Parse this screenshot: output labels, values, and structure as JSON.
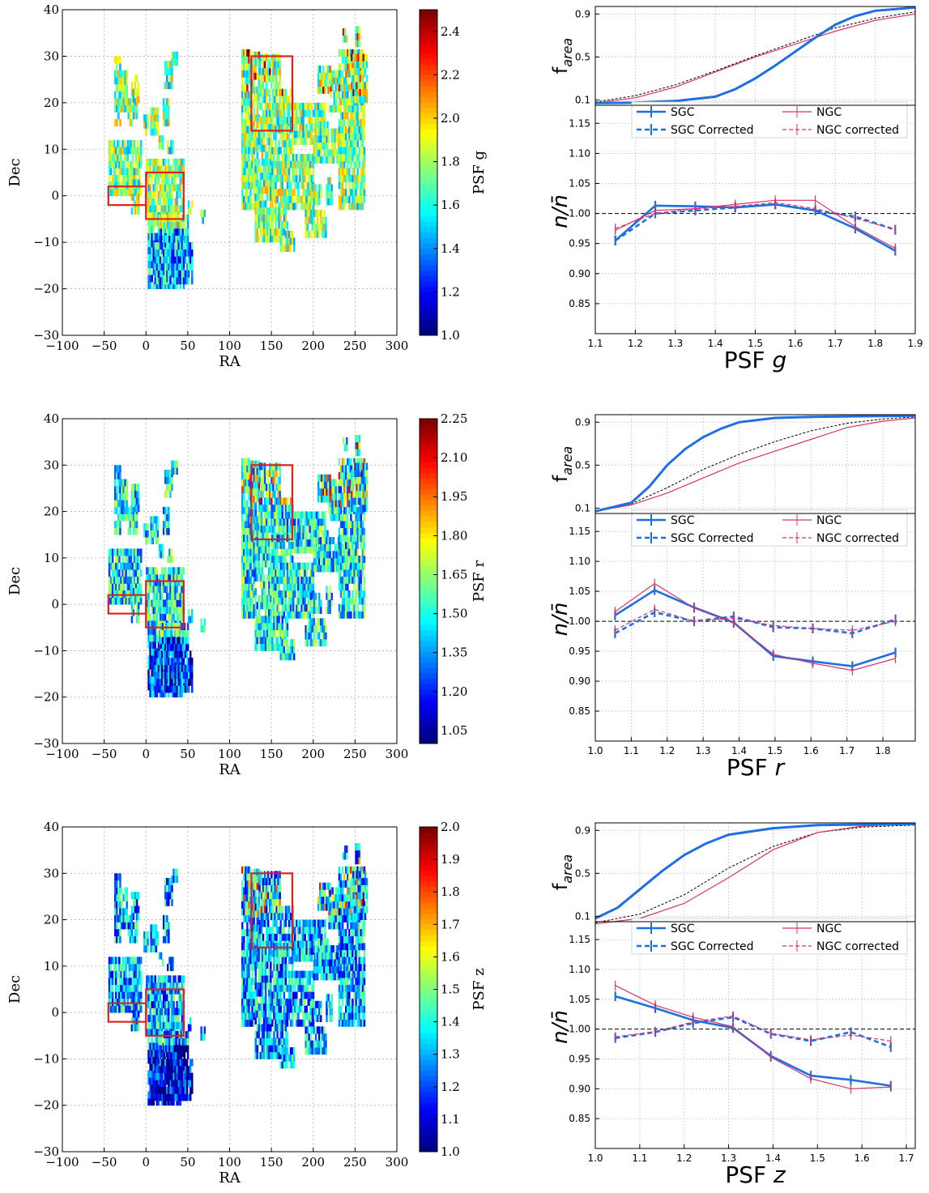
{
  "chart_data": [
    {
      "type": "heatmap",
      "xlabel": "RA",
      "ylabel": "Dec",
      "xticks": [
        "−100",
        "−50",
        "0",
        "50",
        "100",
        "150",
        "200",
        "250",
        "300"
      ],
      "yticks": [
        "−30",
        "−20",
        "−10",
        "0",
        "10",
        "20",
        "30",
        "40"
      ],
      "xlim": [
        -100,
        300
      ],
      "ylim": [
        -30,
        40
      ],
      "grid": true,
      "colorbar": {
        "label": "PSF g",
        "var": "g",
        "min": 1.0,
        "max": 2.5,
        "ticks": [
          "1.0",
          "1.2",
          "1.4",
          "1.6",
          "1.8",
          "2.0",
          "2.2",
          "2.4"
        ],
        "tick_values": [
          1.0,
          1.2,
          1.4,
          1.6,
          1.8,
          2.0,
          2.2,
          2.4
        ]
      },
      "colormap": "jet",
      "level": 0.5,
      "boxes": [
        {
          "ra": [
            -45,
            0
          ],
          "dec": [
            -2,
            2
          ]
        },
        {
          "ra": [
            0,
            45
          ],
          "dec": [
            -5,
            5
          ]
        },
        {
          "ra": [
            126,
            175
          ],
          "dec": [
            14,
            30
          ]
        }
      ]
    },
    {
      "type": "line",
      "xlabel": "PSF",
      "xlabel_var": "g",
      "top_ylabel": "f",
      "top_ylabel_sub": "area",
      "ylabel": "n/n̄",
      "xlim": [
        1.1,
        1.9
      ],
      "xticks": [
        "1.1",
        "1.2",
        "1.3",
        "1.4",
        "1.5",
        "1.6",
        "1.7",
        "1.8",
        "1.9"
      ],
      "top_yticks": [
        "0.1",
        "0.5",
        "0.9"
      ],
      "ylim": [
        0.8,
        1.18
      ],
      "yticks": [
        "0.85",
        "0.90",
        "0.95",
        "1.00",
        "1.05",
        "1.10",
        "1.15"
      ],
      "legend": [
        "SGC",
        "SGC Corrected",
        "NGC",
        "NGC corrected"
      ],
      "x": [
        1.15,
        1.25,
        1.35,
        1.45,
        1.55,
        1.65,
        1.75,
        1.85
      ],
      "series": [
        {
          "name": "SGC",
          "values": [
            0.955,
            1.013,
            1.012,
            1.01,
            1.015,
            1.005,
            0.975,
            0.938
          ]
        },
        {
          "name": "SGC Corrected",
          "values": [
            0.955,
            1.0,
            1.005,
            1.01,
            1.015,
            1.005,
            0.995,
            0.973
          ]
        },
        {
          "name": "NGC",
          "values": [
            0.972,
            1.005,
            1.008,
            1.015,
            1.022,
            1.022,
            0.978,
            0.942
          ]
        },
        {
          "name": "NGC corrected",
          "values": [
            0.975,
            1.0,
            1.008,
            1.012,
            1.018,
            1.008,
            0.992,
            0.973
          ]
        }
      ],
      "farea": {
        "sgc": [
          [
            1.1,
            0.07
          ],
          [
            1.2,
            0.075
          ],
          [
            1.3,
            0.09
          ],
          [
            1.4,
            0.13
          ],
          [
            1.45,
            0.2
          ],
          [
            1.5,
            0.3
          ],
          [
            1.55,
            0.42
          ],
          [
            1.6,
            0.55
          ],
          [
            1.65,
            0.68
          ],
          [
            1.7,
            0.8
          ],
          [
            1.75,
            0.88
          ],
          [
            1.8,
            0.93
          ],
          [
            1.9,
            0.96
          ]
        ],
        "ngc": [
          [
            1.1,
            0.07
          ],
          [
            1.2,
            0.12
          ],
          [
            1.3,
            0.22
          ],
          [
            1.4,
            0.36
          ],
          [
            1.5,
            0.5
          ],
          [
            1.6,
            0.62
          ],
          [
            1.7,
            0.74
          ],
          [
            1.8,
            0.84
          ],
          [
            1.9,
            0.9
          ]
        ],
        "ref": [
          [
            1.1,
            0.08
          ],
          [
            1.2,
            0.14
          ],
          [
            1.3,
            0.24
          ],
          [
            1.4,
            0.37
          ],
          [
            1.5,
            0.51
          ],
          [
            1.6,
            0.64
          ],
          [
            1.7,
            0.77
          ],
          [
            1.8,
            0.86
          ],
          [
            1.9,
            0.92
          ]
        ]
      }
    },
    {
      "type": "heatmap",
      "xlabel": "RA",
      "ylabel": "Dec",
      "xticks": [
        "−100",
        "−50",
        "0",
        "50",
        "100",
        "150",
        "200",
        "250",
        "300"
      ],
      "yticks": [
        "−30",
        "−20",
        "−10",
        "0",
        "10",
        "20",
        "30",
        "40"
      ],
      "xlim": [
        -100,
        300
      ],
      "ylim": [
        -30,
        40
      ],
      "grid": true,
      "colorbar": {
        "label": "PSF r",
        "var": "r",
        "min": 1.0,
        "max": 2.25,
        "ticks": [
          "1.05",
          "1.20",
          "1.35",
          "1.50",
          "1.65",
          "1.80",
          "1.95",
          "2.10",
          "2.25"
        ],
        "tick_values": [
          1.05,
          1.2,
          1.35,
          1.5,
          1.65,
          1.8,
          1.95,
          2.1,
          2.25
        ]
      },
      "colormap": "jet",
      "level": 0.38,
      "boxes": [
        {
          "ra": [
            -45,
            0
          ],
          "dec": [
            -2,
            2
          ]
        },
        {
          "ra": [
            0,
            45
          ],
          "dec": [
            -5,
            5
          ]
        },
        {
          "ra": [
            126,
            175
          ],
          "dec": [
            14,
            30
          ]
        }
      ]
    },
    {
      "type": "line",
      "xlabel": "PSF",
      "xlabel_var": "r",
      "top_ylabel": "f",
      "top_ylabel_sub": "area",
      "ylabel": "n/n̄",
      "xlim": [
        1.0,
        1.89
      ],
      "xticks": [
        "1.0",
        "1.1",
        "1.2",
        "1.3",
        "1.4",
        "1.5",
        "1.6",
        "1.7",
        "1.8"
      ],
      "top_yticks": [
        "0.1",
        "0.5",
        "0.9"
      ],
      "ylim": [
        0.8,
        1.18
      ],
      "yticks": [
        "0.85",
        "0.90",
        "0.95",
        "1.00",
        "1.05",
        "1.10",
        "1.15"
      ],
      "legend": [
        "SGC",
        "SGC Corrected",
        "NGC",
        "NGC corrected"
      ],
      "x": [
        1.055,
        1.165,
        1.275,
        1.385,
        1.495,
        1.605,
        1.715,
        1.835
      ],
      "series": [
        {
          "name": "SGC",
          "values": [
            1.01,
            1.052,
            1.023,
            0.998,
            0.942,
            0.933,
            0.925,
            0.948
          ]
        },
        {
          "name": "SGC Corrected",
          "values": [
            0.98,
            1.015,
            1.0,
            1.008,
            0.99,
            0.988,
            0.98,
            1.003
          ]
        },
        {
          "name": "NGC",
          "values": [
            1.016,
            1.063,
            1.022,
            0.997,
            0.945,
            0.93,
            0.918,
            0.938
          ]
        },
        {
          "name": "NGC corrected",
          "values": [
            0.985,
            1.02,
            1.0,
            1.005,
            0.993,
            0.988,
            0.985,
            1.0
          ]
        }
      ],
      "farea": {
        "sgc": [
          [
            1.0,
            0.07
          ],
          [
            1.1,
            0.15
          ],
          [
            1.15,
            0.3
          ],
          [
            1.2,
            0.5
          ],
          [
            1.25,
            0.65
          ],
          [
            1.3,
            0.76
          ],
          [
            1.35,
            0.84
          ],
          [
            1.4,
            0.9
          ],
          [
            1.5,
            0.94
          ],
          [
            1.6,
            0.95
          ],
          [
            1.89,
            0.96
          ]
        ],
        "ngc": [
          [
            1.0,
            0.07
          ],
          [
            1.1,
            0.13
          ],
          [
            1.2,
            0.24
          ],
          [
            1.3,
            0.38
          ],
          [
            1.4,
            0.52
          ],
          [
            1.5,
            0.63
          ],
          [
            1.6,
            0.74
          ],
          [
            1.7,
            0.85
          ],
          [
            1.8,
            0.91
          ],
          [
            1.89,
            0.94
          ]
        ],
        "ref": [
          [
            1.0,
            0.07
          ],
          [
            1.1,
            0.14
          ],
          [
            1.2,
            0.29
          ],
          [
            1.3,
            0.46
          ],
          [
            1.4,
            0.6
          ],
          [
            1.5,
            0.72
          ],
          [
            1.6,
            0.82
          ],
          [
            1.7,
            0.89
          ],
          [
            1.8,
            0.93
          ],
          [
            1.89,
            0.95
          ]
        ]
      }
    },
    {
      "type": "heatmap",
      "xlabel": "RA",
      "ylabel": "Dec",
      "xticks": [
        "−100",
        "−50",
        "0",
        "50",
        "100",
        "150",
        "200",
        "250",
        "300"
      ],
      "yticks": [
        "−30",
        "−20",
        "−10",
        "0",
        "10",
        "20",
        "30",
        "40"
      ],
      "xlim": [
        -100,
        300
      ],
      "ylim": [
        -30,
        40
      ],
      "grid": true,
      "colorbar": {
        "label": "PSF z",
        "var": "z",
        "min": 1.0,
        "max": 2.0,
        "ticks": [
          "1.0",
          "1.1",
          "1.2",
          "1.3",
          "1.4",
          "1.5",
          "1.6",
          "1.7",
          "1.8",
          "1.9",
          "2.0"
        ],
        "tick_values": [
          1.0,
          1.1,
          1.2,
          1.3,
          1.4,
          1.5,
          1.6,
          1.7,
          1.8,
          1.9,
          2.0
        ]
      },
      "colormap": "jet",
      "level": 0.3,
      "boxes": [
        {
          "ra": [
            -45,
            0
          ],
          "dec": [
            -2,
            2
          ]
        },
        {
          "ra": [
            0,
            45
          ],
          "dec": [
            -5,
            5
          ]
        },
        {
          "ra": [
            126,
            175
          ],
          "dec": [
            14,
            30
          ]
        }
      ]
    },
    {
      "type": "line",
      "xlabel": "PSF",
      "xlabel_var": "z",
      "top_ylabel": "f",
      "top_ylabel_sub": "area",
      "ylabel": "n/n̄",
      "xlim": [
        1.0,
        1.72
      ],
      "xticks": [
        "1.0",
        "1.1",
        "1.2",
        "1.3",
        "1.4",
        "1.5",
        "1.6",
        "1.7"
      ],
      "top_yticks": [
        "0.1",
        "0.5",
        "0.9"
      ],
      "ylim": [
        0.8,
        1.18
      ],
      "yticks": [
        "0.85",
        "0.90",
        "0.95",
        "1.00",
        "1.05",
        "1.10",
        "1.15"
      ],
      "legend": [
        "SGC",
        "SGC Corrected",
        "NGC",
        "NGC corrected"
      ],
      "x": [
        1.045,
        1.135,
        1.22,
        1.31,
        1.395,
        1.485,
        1.575,
        1.665
      ],
      "series": [
        {
          "name": "SGC",
          "values": [
            1.055,
            1.035,
            1.015,
            1.002,
            0.955,
            0.922,
            0.915,
            0.905
          ]
        },
        {
          "name": "SGC Corrected",
          "values": [
            0.985,
            0.995,
            1.01,
            1.02,
            0.992,
            0.98,
            0.995,
            0.97
          ]
        },
        {
          "name": "NGC",
          "values": [
            1.073,
            1.04,
            1.02,
            1.004,
            0.953,
            0.917,
            0.9,
            0.903
          ]
        },
        {
          "name": "NGC corrected",
          "values": [
            0.987,
            0.996,
            1.012,
            1.022,
            0.993,
            0.982,
            0.99,
            0.98
          ]
        }
      ],
      "farea": {
        "sgc": [
          [
            1.0,
            0.08
          ],
          [
            1.05,
            0.18
          ],
          [
            1.1,
            0.35
          ],
          [
            1.15,
            0.52
          ],
          [
            1.2,
            0.67
          ],
          [
            1.25,
            0.78
          ],
          [
            1.3,
            0.86
          ],
          [
            1.4,
            0.92
          ],
          [
            1.5,
            0.95
          ],
          [
            1.72,
            0.96
          ]
        ],
        "ngc": [
          [
            1.0,
            0.03
          ],
          [
            1.1,
            0.08
          ],
          [
            1.2,
            0.22
          ],
          [
            1.3,
            0.46
          ],
          [
            1.4,
            0.72
          ],
          [
            1.5,
            0.88
          ],
          [
            1.6,
            0.94
          ],
          [
            1.72,
            0.96
          ]
        ],
        "ref": [
          [
            1.0,
            0.04
          ],
          [
            1.1,
            0.12
          ],
          [
            1.2,
            0.3
          ],
          [
            1.3,
            0.55
          ],
          [
            1.4,
            0.75
          ],
          [
            1.5,
            0.88
          ],
          [
            1.6,
            0.93
          ],
          [
            1.72,
            0.95
          ]
        ]
      }
    }
  ]
}
